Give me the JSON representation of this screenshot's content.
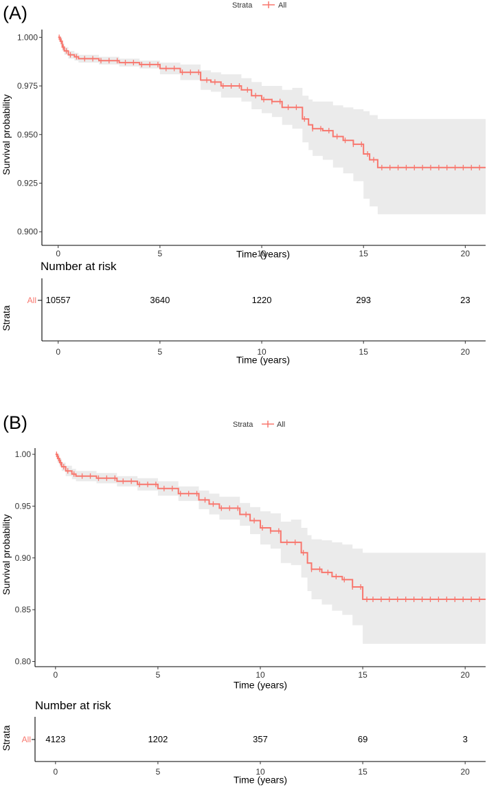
{
  "chart_data": [
    {
      "type": "line",
      "panel_label": "(A)",
      "legend": {
        "title": "Strata",
        "entry": "All",
        "placement": "top"
      },
      "ylabel": "Survival probability",
      "xlabel": "Time (years)",
      "xlim": [
        -0.8,
        21
      ],
      "ylim": [
        0.893,
        1.004
      ],
      "x_ticks": [
        0,
        5,
        10,
        15,
        20
      ],
      "x_tick_labels": [
        "0",
        "5",
        "10",
        "15",
        "20"
      ],
      "y_ticks": [
        0.9,
        0.925,
        0.95,
        0.975,
        1.0
      ],
      "y_tick_labels": [
        "0.900",
        "0.925",
        "0.950",
        "0.975",
        "1.000"
      ],
      "series": [
        {
          "name": "All",
          "color": "#f8766d",
          "ci_color": "#ebebeb",
          "x": [
            0,
            0.1,
            0.2,
            0.3,
            0.5,
            0.8,
            1,
            2,
            3,
            4,
            5,
            6,
            7,
            7.5,
            8,
            9,
            9.5,
            10,
            10.5,
            11,
            11.5,
            12,
            12.3,
            12.5,
            13,
            13.5,
            14,
            14.5,
            15,
            15.3,
            15.7,
            21
          ],
          "survival": [
            1.0,
            0.998,
            0.995,
            0.993,
            0.991,
            0.99,
            0.989,
            0.988,
            0.987,
            0.986,
            0.984,
            0.982,
            0.978,
            0.977,
            0.975,
            0.973,
            0.97,
            0.968,
            0.967,
            0.964,
            0.964,
            0.958,
            0.955,
            0.953,
            0.952,
            0.949,
            0.947,
            0.945,
            0.94,
            0.937,
            0.933,
            0.933
          ],
          "ci_upper": [
            1.0,
            1.0,
            0.997,
            0.995,
            0.993,
            0.992,
            0.991,
            0.99,
            0.989,
            0.988,
            0.987,
            0.986,
            0.983,
            0.982,
            0.981,
            0.979,
            0.977,
            0.975,
            0.975,
            0.973,
            0.974,
            0.97,
            0.968,
            0.967,
            0.967,
            0.965,
            0.964,
            0.963,
            0.962,
            0.96,
            0.958,
            0.958
          ],
          "ci_lower": [
            1.0,
            0.996,
            0.993,
            0.991,
            0.989,
            0.988,
            0.987,
            0.986,
            0.985,
            0.984,
            0.981,
            0.978,
            0.973,
            0.972,
            0.969,
            0.967,
            0.963,
            0.961,
            0.959,
            0.955,
            0.953,
            0.946,
            0.942,
            0.939,
            0.937,
            0.933,
            0.93,
            0.926,
            0.917,
            0.913,
            0.909,
            0.909
          ]
        }
      ],
      "censor_times": [
        0.05,
        0.15,
        0.25,
        0.4,
        0.6,
        0.9,
        1.3,
        1.7,
        2.1,
        2.5,
        2.9,
        3.3,
        3.7,
        4.1,
        4.5,
        4.9,
        5.3,
        5.7,
        6.1,
        6.5,
        6.9,
        7.3,
        7.7,
        8.1,
        8.5,
        8.9,
        9.3,
        9.7,
        10.1,
        10.5,
        10.9,
        11.3,
        11.7,
        12.1,
        12.5,
        12.9,
        13.3,
        13.7,
        14.1,
        14.5,
        14.9,
        15.2,
        15.5,
        15.9,
        16.3,
        16.7,
        17.1,
        17.5,
        17.9,
        18.3,
        18.7,
        19.1,
        19.5,
        19.9,
        20.3,
        20.7
      ],
      "risk_table": {
        "title": "Number at risk",
        "strata_axis_label": "Strata",
        "strata_label": "All",
        "times": [
          0,
          5,
          10,
          15,
          20
        ],
        "counts": [
          "10557",
          "3640",
          "1220",
          "293",
          "23"
        ],
        "xlabel": "Time (years)"
      }
    },
    {
      "type": "line",
      "panel_label": "(B)",
      "legend": {
        "title": "Strata",
        "entry": "All",
        "placement": "top"
      },
      "ylabel": "Survival probability",
      "xlabel": "Time (years)",
      "xlim": [
        -1.0,
        21
      ],
      "ylim": [
        0.795,
        1.006
      ],
      "x_ticks": [
        0,
        5,
        10,
        15,
        20
      ],
      "x_tick_labels": [
        "0",
        "5",
        "10",
        "15",
        "20"
      ],
      "y_ticks": [
        0.8,
        0.85,
        0.9,
        0.95,
        1.0
      ],
      "y_tick_labels": [
        "0.80",
        "0.85",
        "0.90",
        "0.95",
        "1.00"
      ],
      "series": [
        {
          "name": "All",
          "color": "#f8766d",
          "ci_color": "#ebebeb",
          "x": [
            0,
            0.1,
            0.2,
            0.3,
            0.5,
            0.8,
            1,
            2,
            3,
            4,
            5,
            6,
            7,
            7.5,
            8,
            9,
            9.5,
            10,
            10.5,
            11,
            11.5,
            12,
            12.3,
            12.5,
            13,
            13.5,
            14,
            14.5,
            15,
            21
          ],
          "survival": [
            1.0,
            0.996,
            0.992,
            0.988,
            0.984,
            0.981,
            0.979,
            0.977,
            0.974,
            0.971,
            0.967,
            0.962,
            0.956,
            0.952,
            0.948,
            0.942,
            0.936,
            0.929,
            0.926,
            0.915,
            0.915,
            0.905,
            0.895,
            0.889,
            0.886,
            0.882,
            0.879,
            0.872,
            0.86,
            0.86
          ],
          "ci_upper": [
            1.0,
            1.0,
            0.996,
            0.992,
            0.989,
            0.986,
            0.984,
            0.982,
            0.979,
            0.977,
            0.974,
            0.969,
            0.965,
            0.962,
            0.959,
            0.953,
            0.949,
            0.945,
            0.943,
            0.935,
            0.937,
            0.929,
            0.922,
            0.918,
            0.917,
            0.915,
            0.913,
            0.909,
            0.905,
            0.905
          ],
          "ci_lower": [
            1.0,
            0.992,
            0.988,
            0.984,
            0.979,
            0.976,
            0.974,
            0.972,
            0.969,
            0.965,
            0.96,
            0.955,
            0.947,
            0.942,
            0.937,
            0.931,
            0.923,
            0.913,
            0.909,
            0.895,
            0.893,
            0.881,
            0.868,
            0.86,
            0.855,
            0.849,
            0.845,
            0.835,
            0.817,
            0.817
          ]
        }
      ],
      "censor_times": [
        0.05,
        0.15,
        0.25,
        0.4,
        0.6,
        0.9,
        1.3,
        1.7,
        2.1,
        2.5,
        2.9,
        3.3,
        3.7,
        4.1,
        4.5,
        4.9,
        5.3,
        5.7,
        6.1,
        6.5,
        6.9,
        7.3,
        7.7,
        8.1,
        8.5,
        8.9,
        9.3,
        9.7,
        10.1,
        10.5,
        10.9,
        11.3,
        11.7,
        12.1,
        12.5,
        12.9,
        13.3,
        13.7,
        14.1,
        14.5,
        14.9,
        15.2,
        15.5,
        15.9,
        16.3,
        16.7,
        17.1,
        17.5,
        17.9,
        18.3,
        18.7,
        19.1,
        19.5,
        19.9,
        20.3,
        20.7
      ],
      "risk_table": {
        "title": "Number at risk",
        "strata_axis_label": "Strata",
        "strata_label": "All",
        "times": [
          0,
          5,
          10,
          15,
          20
        ],
        "counts": [
          "4123",
          "1202",
          "357",
          "69",
          "3"
        ],
        "xlabel": "Time (years)"
      }
    }
  ]
}
